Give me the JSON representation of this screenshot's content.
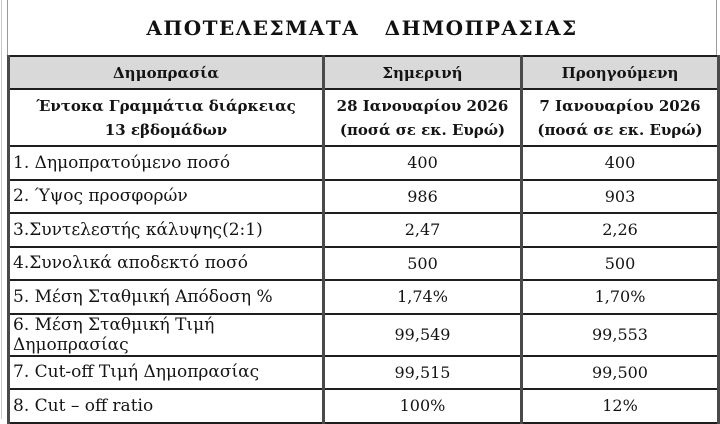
{
  "page": {
    "title": "ΑΠΟΤΕΛΕΣΜΑΤΑ   ΔΗΜΟΠΡΑΣΙΑΣ"
  },
  "colors": {
    "header_bg": "#d9d9d9",
    "border_horizontal": "#1e1e1e",
    "border_vertical": "#4a4a4a",
    "text": "#141414"
  },
  "table": {
    "headers": {
      "col1": "Δημοπρασία",
      "col2": "Σημερινή",
      "col3": "Προηγούμενη"
    },
    "subheaders": {
      "col1_line1": "Έντοκα Γραμμάτια διάρκειας",
      "col1_line2": "13 εβδομάδων",
      "col2_line1": "28 Ιανουαρίου 2026",
      "col2_line2": "(ποσά σε εκ. Ευρώ)",
      "col3_line1": "7 Ιανουαρίου 2026",
      "col3_line2": "(ποσά σε εκ. Ευρώ)"
    },
    "rows": [
      {
        "label": "1. Δημοπρατούμενο ποσό",
        "current": "400",
        "previous": "400"
      },
      {
        "label": "2. Ύψος προσφορών",
        "current": "986",
        "previous": "903"
      },
      {
        "label": "3.Συντελεστής κάλυψης(2:1)",
        "current": "2,47",
        "previous": "2,26"
      },
      {
        "label": "4.Συνολικά αποδεκτό ποσό",
        "current": "500",
        "previous": "500"
      },
      {
        "label": "5. Μέση Σταθμική Απόδοση %",
        "current": "1,74%",
        "previous": "1,70%"
      },
      {
        "label": "6. Μέση Σταθμική Τιμή Δημοπρασίας",
        "current": "99,549",
        "previous": "99,553"
      },
      {
        "label": "7. Cut-off Τιμή Δημοπρασίας",
        "current": "99,515",
        "previous": "99,500"
      },
      {
        "label": "8. Cut – off ratio",
        "current": "100%",
        "previous": "12%"
      }
    ]
  }
}
